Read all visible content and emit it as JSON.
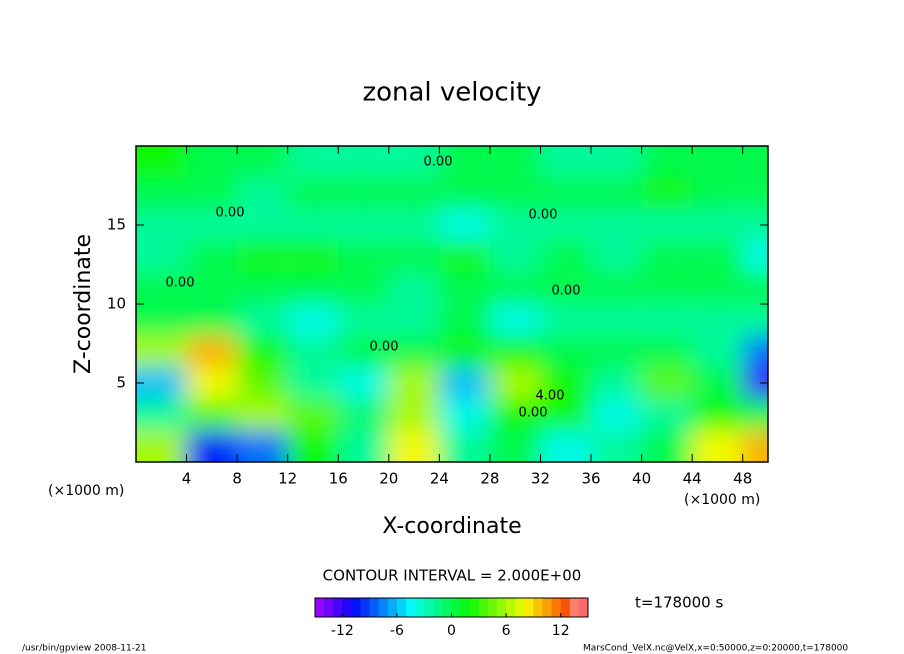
{
  "chart_data": {
    "type": "contour",
    "title": "zonal velocity",
    "x_label": "X-coordinate",
    "y_label": "Z-coordinate",
    "x_unit_left": "(×1000 m)",
    "x_unit_right": "(×1000 m)",
    "xlim": [
      0,
      50
    ],
    "ylim": [
      0,
      20
    ],
    "xticks": [
      4,
      8,
      12,
      16,
      20,
      24,
      28,
      32,
      36,
      40,
      44,
      48
    ],
    "yticks": [
      5,
      10,
      15
    ],
    "x": [
      2,
      6,
      10,
      14,
      18,
      22,
      26,
      30,
      34,
      38,
      42,
      46,
      50
    ],
    "y": [
      1,
      3,
      5,
      7,
      9,
      11,
      13,
      15,
      17,
      19
    ],
    "z": [
      [
        6,
        -10,
        -8,
        2,
        -2,
        8,
        -2,
        0,
        -4,
        -2,
        0,
        8,
        10
      ],
      [
        -2,
        4,
        6,
        4,
        -1,
        6,
        -4,
        2,
        2,
        -4,
        -2,
        2,
        0
      ],
      [
        -6,
        8,
        4,
        -2,
        -4,
        6,
        -6,
        6,
        2,
        -2,
        4,
        0,
        -12
      ],
      [
        6,
        10,
        2,
        -2,
        0,
        0,
        2,
        2,
        0,
        0,
        0,
        -2,
        -8
      ],
      [
        0,
        0,
        -2,
        -4,
        -2,
        -2,
        0,
        -4,
        -2,
        -2,
        -2,
        -2,
        -2
      ],
      [
        0,
        0,
        0,
        0,
        0,
        -2,
        0,
        0,
        0,
        0,
        0,
        0,
        0
      ],
      [
        -2,
        0,
        2,
        2,
        0,
        0,
        2,
        -2,
        0,
        -2,
        0,
        0,
        -4
      ],
      [
        -2,
        -2,
        -2,
        -2,
        -2,
        -2,
        -4,
        -2,
        -2,
        -2,
        -2,
        -2,
        -2
      ],
      [
        0,
        0,
        -2,
        0,
        0,
        0,
        0,
        0,
        0,
        0,
        2,
        0,
        0
      ],
      [
        2,
        0,
        0,
        -2,
        -2,
        -2,
        0,
        0,
        -2,
        -2,
        0,
        0,
        0
      ]
    ],
    "contour_labels": [
      "0.00",
      "0.00",
      "0.00",
      "0.00",
      "0.00",
      "0.00",
      "4.00",
      "0.00"
    ],
    "contour_interval": "CONTOUR INTERVAL = 2.000E+00",
    "colorbar_lim": [
      -15,
      15
    ],
    "colorbar_ticks": [
      -12,
      -6,
      0,
      6,
      12
    ],
    "time_label": "t=178000 s",
    "footer_left": "/usr/bin/gpview  2008-11-21",
    "footer_right": "MarsCond_VelX.nc@VelX,x=0:50000,z=0:20000,t=178000"
  }
}
